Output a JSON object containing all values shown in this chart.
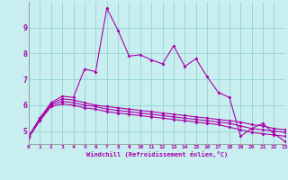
{
  "xlabel": "Windchill (Refroidissement éolien,°C)",
  "x": [
    0,
    1,
    2,
    3,
    4,
    5,
    6,
    7,
    8,
    9,
    10,
    11,
    12,
    13,
    14,
    15,
    16,
    17,
    18,
    19,
    20,
    21,
    22,
    23
  ],
  "line1": [
    4.8,
    5.5,
    6.1,
    6.35,
    6.3,
    7.4,
    7.3,
    9.75,
    8.9,
    7.9,
    7.95,
    7.75,
    7.6,
    8.3,
    7.5,
    7.8,
    7.1,
    6.5,
    6.3,
    4.8,
    5.1,
    5.3,
    4.9,
    4.6
  ],
  "line2": [
    4.8,
    5.5,
    6.05,
    6.25,
    6.2,
    6.1,
    6.0,
    5.95,
    5.9,
    5.85,
    5.8,
    5.75,
    5.7,
    5.65,
    5.6,
    5.55,
    5.5,
    5.45,
    5.4,
    5.35,
    5.25,
    5.2,
    5.1,
    5.05
  ],
  "line3": [
    4.8,
    5.45,
    6.0,
    6.15,
    6.1,
    6.0,
    5.95,
    5.85,
    5.8,
    5.75,
    5.7,
    5.65,
    5.6,
    5.55,
    5.5,
    5.45,
    5.4,
    5.35,
    5.3,
    5.2,
    5.1,
    5.05,
    5.0,
    4.95
  ],
  "line4": [
    4.75,
    5.4,
    5.95,
    6.05,
    6.0,
    5.9,
    5.85,
    5.75,
    5.7,
    5.65,
    5.6,
    5.55,
    5.5,
    5.45,
    5.4,
    5.35,
    5.3,
    5.25,
    5.15,
    5.05,
    4.95,
    4.9,
    4.85,
    4.8
  ],
  "line_color": "#aa00aa",
  "bg_color": "#c8eef0",
  "grid_color": "#aadddd",
  "ylim": [
    4.5,
    10.0
  ],
  "yticks": [
    5,
    6,
    7,
    8,
    9
  ],
  "marker": "D",
  "marker_size": 2.0,
  "lw": 0.8
}
